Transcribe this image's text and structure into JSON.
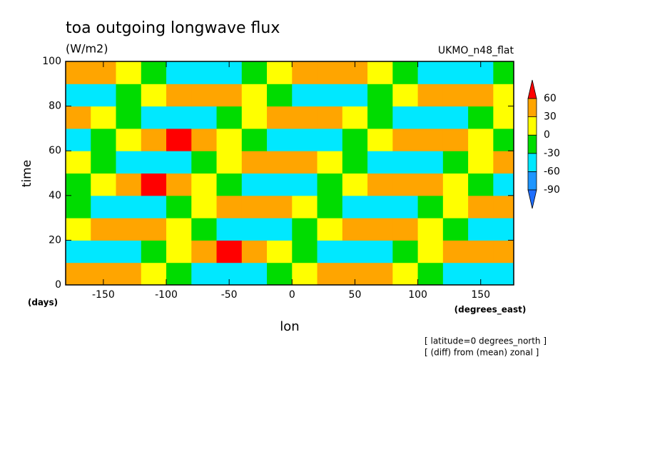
{
  "chart_data": {
    "type": "heatmap",
    "title": "toa outgoing longwave flux",
    "subtitle": "(W/m2)",
    "dataset": "UKMO_n48_flat",
    "x_label": "lon",
    "x_units": "(degrees_east)",
    "y_label": "time",
    "y_units": "(days)",
    "notes": [
      "[ latitude=0 degrees_north ]",
      "[ (diff) from (mean) zonal ]"
    ],
    "xlim": [
      -180,
      176.25
    ],
    "ylim": [
      0,
      100
    ],
    "xticks": [
      -150,
      -100,
      -50,
      0,
      50,
      100,
      150
    ],
    "yticks": [
      0,
      20,
      40,
      60,
      80,
      100
    ],
    "x": [
      -170,
      -150,
      -130,
      -110,
      -90,
      -70,
      -50,
      -30,
      -10,
      10,
      30,
      50,
      70,
      90,
      110,
      130,
      150,
      170
    ],
    "y": [
      5,
      15,
      25,
      35,
      45,
      55,
      65,
      75,
      85,
      95
    ],
    "z": [
      [
        45,
        50,
        40,
        20,
        -15,
        -45,
        -60,
        -35,
        -5,
        25,
        45,
        50,
        40,
        20,
        -15,
        -45,
        -60,
        -35
      ],
      [
        -45,
        -60,
        -35,
        -5,
        25,
        45,
        64,
        40,
        20,
        -15,
        -45,
        -60,
        -35,
        -5,
        25,
        45,
        50,
        40
      ],
      [
        25,
        45,
        50,
        40,
        20,
        -15,
        -45,
        -60,
        -35,
        -5,
        25,
        45,
        50,
        40,
        20,
        -15,
        -45,
        -60
      ],
      [
        -15,
        -45,
        -60,
        -35,
        -5,
        25,
        45,
        50,
        40,
        20,
        -15,
        -45,
        -60,
        -35,
        -5,
        25,
        45,
        50
      ],
      [
        -5,
        25,
        45,
        62,
        40,
        20,
        -15,
        -45,
        -60,
        -35,
        -5,
        25,
        45,
        50,
        40,
        20,
        -15,
        -45
      ],
      [
        20,
        -15,
        -45,
        -60,
        -35,
        -5,
        25,
        45,
        50,
        40,
        20,
        -15,
        -45,
        -60,
        -35,
        -5,
        25,
        45
      ],
      [
        -35,
        -5,
        25,
        45,
        65,
        40,
        20,
        -15,
        -45,
        -60,
        -35,
        -5,
        25,
        45,
        50,
        40,
        20,
        -15
      ],
      [
        40,
        20,
        -15,
        -45,
        -60,
        -35,
        -5,
        25,
        45,
        50,
        40,
        20,
        -15,
        -45,
        -60,
        -35,
        -5,
        25
      ],
      [
        -60,
        -35,
        -5,
        25,
        45,
        50,
        40,
        20,
        -15,
        -45,
        -60,
        -35,
        -5,
        25,
        45,
        50,
        40,
        20
      ],
      [
        50,
        40,
        20,
        -15,
        -45,
        -60,
        -35,
        -5,
        25,
        45,
        50,
        40,
        20,
        -15,
        -45,
        -60,
        -35,
        -5
      ]
    ],
    "levels": [
      -90,
      -60,
      -30,
      0,
      30,
      60
    ],
    "colors": [
      "#1e6eff",
      "#1e96ff",
      "#00e8ff",
      "#00dc00",
      "#ffff00",
      "#ffa500",
      "#ff0000"
    ]
  }
}
